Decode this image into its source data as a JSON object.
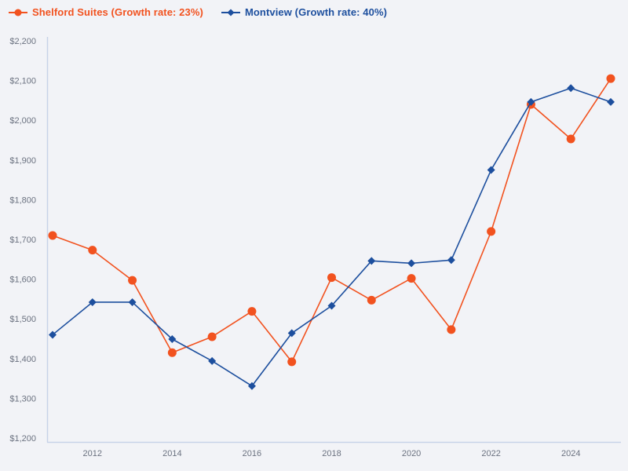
{
  "legend": {
    "items": [
      {
        "label": "Shelford Suites (Growth rate: 23%)",
        "color": "#f2521f",
        "marker": "circle"
      },
      {
        "label": "Montview (Growth rate: 40%)",
        "color": "#1d4f9e",
        "marker": "diamond"
      }
    ]
  },
  "chart_data": {
    "type": "line",
    "x": [
      2011,
      2012,
      2013,
      2014,
      2015,
      2016,
      2017,
      2018,
      2019,
      2020,
      2021,
      2022,
      2023,
      2024,
      2025
    ],
    "series": [
      {
        "name": "Shelford Suites",
        "growth_rate": "23%",
        "color": "#f2521f",
        "marker": "circle",
        "values": [
          1710,
          1673,
          1597,
          1415,
          1455,
          1519,
          1392,
          1604,
          1547,
          1602,
          1473,
          1720,
          2040,
          1953,
          2105
        ]
      },
      {
        "name": "Montview",
        "growth_rate": "40%",
        "color": "#1d4f9e",
        "marker": "diamond",
        "values": [
          1460,
          1542,
          1542,
          1449,
          1394,
          1331,
          1464,
          1533,
          1646,
          1640,
          1648,
          1875,
          2046,
          2081,
          2046
        ]
      }
    ],
    "title": "",
    "xlabel": "",
    "ylabel": "",
    "xlim": [
      2011,
      2025
    ],
    "ylim": [
      1200,
      2200
    ],
    "x_ticks": [
      2012,
      2014,
      2016,
      2018,
      2020,
      2022,
      2024
    ],
    "x_tick_labels": [
      "2012",
      "2014",
      "2016",
      "2018",
      "2020",
      "2022",
      "2024"
    ],
    "y_ticks": [
      1200,
      1300,
      1400,
      1500,
      1600,
      1700,
      1800,
      1900,
      2000,
      2100,
      2200
    ],
    "y_tick_labels": [
      "$1,200",
      "$1,300",
      "$1,400",
      "$1,500",
      "$1,600",
      "$1,700",
      "$1,800",
      "$1,900",
      "$2,000",
      "$2,100",
      "$2,200"
    ],
    "grid": false,
    "legend_position": "top-left"
  },
  "colors": {
    "background": "#f2f3f7",
    "axis_line": "#c7d3e8",
    "tick_label": "#6b7280"
  }
}
